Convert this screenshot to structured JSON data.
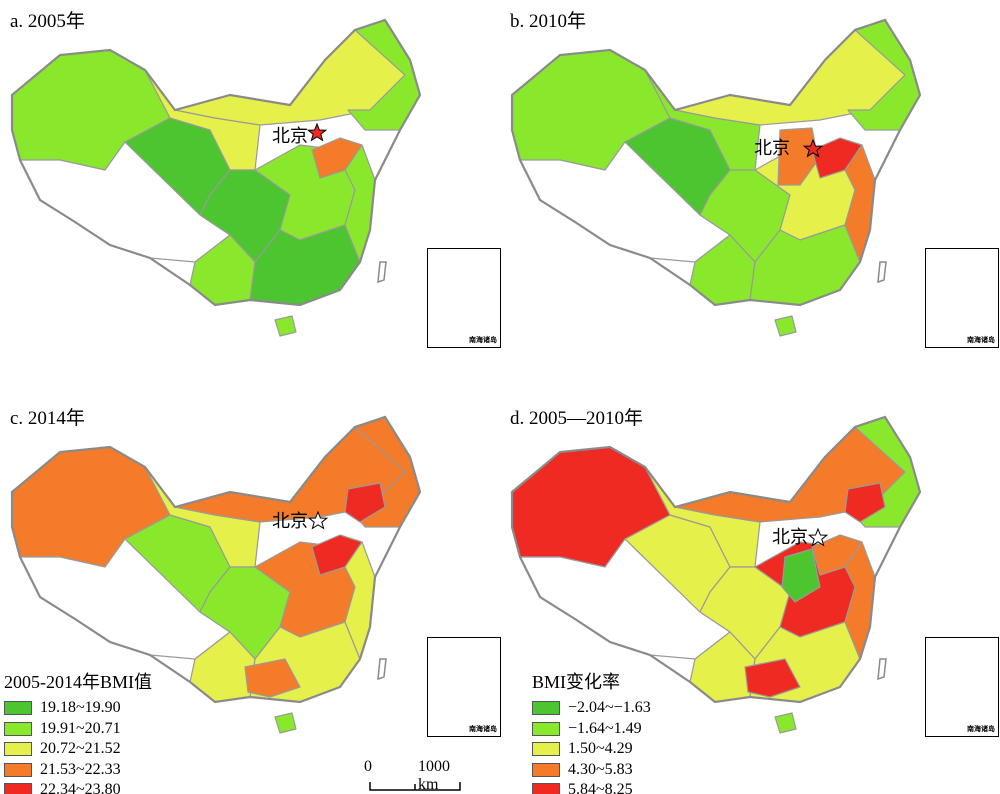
{
  "panels": [
    {
      "title": "a. 2005年",
      "capital": "北京",
      "inset_label": "南海诸岛"
    },
    {
      "title": "b. 2010年",
      "capital": "北京",
      "inset_label": "南海诸岛"
    },
    {
      "title": "c. 2014年",
      "capital": "北京",
      "inset_label": "南海诸岛"
    },
    {
      "title": "d. 2005—2010年",
      "capital": "北京",
      "inset_label": "南海诸岛"
    }
  ],
  "legend_bmi": {
    "title": "2005-2014年BMI值",
    "items": [
      {
        "label": "19.18~19.90",
        "color": "#4cc530"
      },
      {
        "label": "19.91~20.71",
        "color": "#8ae82c"
      },
      {
        "label": "20.72~21.52",
        "color": "#e6f04a"
      },
      {
        "label": "21.53~22.33",
        "color": "#f37b2a"
      },
      {
        "label": "22.34~23.80",
        "color": "#ee2a22"
      }
    ]
  },
  "legend_change": {
    "title": "BMI变化率",
    "items": [
      {
        "label": "−2.04~−1.63",
        "color": "#4cc530"
      },
      {
        "label": "−1.64~1.49",
        "color": "#8ae82c"
      },
      {
        "label": "1.50~4.29",
        "color": "#e6f04a"
      },
      {
        "label": "4.30~5.83",
        "color": "#f37b2a"
      },
      {
        "label": "5.84~8.25",
        "color": "#ee2a22"
      }
    ]
  },
  "scale_bar": {
    "zero": "0",
    "end": "1000 km"
  },
  "icons": {
    "capital": "star-icon"
  }
}
